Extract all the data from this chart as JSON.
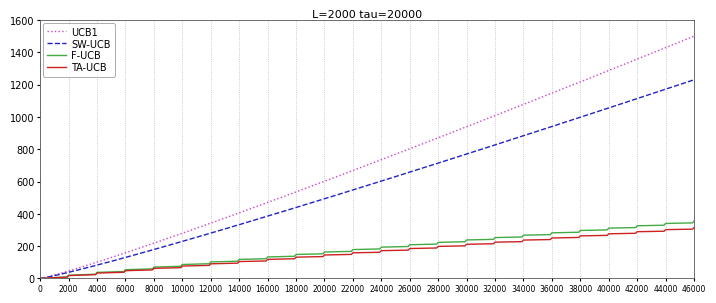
{
  "title": "L=2000 tau=20000",
  "xlim": [
    0,
    46000
  ],
  "ylim": [
    0,
    1600
  ],
  "yticks": [
    0,
    200,
    400,
    600,
    800,
    1000,
    1200,
    1400,
    1600
  ],
  "xtick_step": 2000,
  "series": [
    {
      "label": "UCB1",
      "color": "#cc44cc",
      "linestyle": "dotted",
      "linewidth": 1.0
    },
    {
      "label": "SW-UCB",
      "color": "#2222cc",
      "linestyle": "dashed",
      "linewidth": 1.0
    },
    {
      "label": "F-UCB",
      "color": "#44aa44",
      "linestyle": "solid",
      "linewidth": 1.0
    },
    {
      "label": "TA-UCB",
      "color": "#cc2222",
      "linestyle": "solid",
      "linewidth": 1.0
    }
  ],
  "background_color": "#ffffff",
  "grid_color": "#bbbbbb",
  "legend_loc": "upper left",
  "L": 2000,
  "tau": 20000,
  "T": 46000
}
